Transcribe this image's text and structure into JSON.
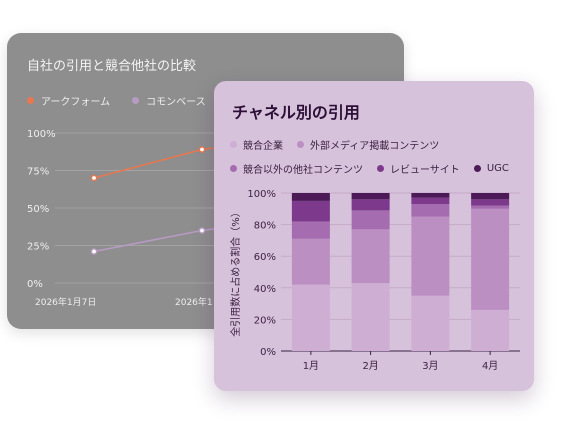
{
  "back_chart": {
    "title": "自社の引用と競合他社の比較",
    "legend": [
      {
        "name": "アークフォーム",
        "color": "#e8774f"
      },
      {
        "name": "コモンベース",
        "color": "#b89bc4"
      }
    ],
    "chart_data": {
      "type": "line",
      "x": [
        "2026年1月7日",
        "2026年1"
      ],
      "series": [
        {
          "name": "アークフォーム",
          "values": [
            70,
            89
          ],
          "color": "#e8774f"
        },
        {
          "name": "コモンベース",
          "values": [
            21,
            35
          ],
          "color": "#b89bc4"
        }
      ],
      "ylim": [
        0,
        100
      ],
      "yticks": [
        "0%",
        "25%",
        "50%",
        "75%",
        "100%"
      ]
    }
  },
  "front_chart": {
    "title": "チャネル別の引用",
    "legend": [
      {
        "name": "競合企業",
        "color": "#cfaed3"
      },
      {
        "name": "外部メディア掲載コンテンツ",
        "color": "#bb8fc2"
      },
      {
        "name": "競合以外の他社コンテンツ",
        "color": "#a56cb0"
      },
      {
        "name": "レビューサイト",
        "color": "#7d3a8c"
      },
      {
        "name": "UGC",
        "color": "#4c1a57"
      }
    ],
    "chart_data": {
      "type": "bar",
      "stacked": true,
      "categories": [
        "1月",
        "2月",
        "3月",
        "4月"
      ],
      "series": [
        {
          "name": "競合企業",
          "values": [
            42,
            43,
            35,
            26
          ],
          "color": "#cfaed3"
        },
        {
          "name": "外部メディア掲載コンテンツ",
          "values": [
            29,
            34,
            50,
            64
          ],
          "color": "#bb8fc2"
        },
        {
          "name": "競合以外の他社コンテンツ",
          "values": [
            11,
            12,
            8,
            2
          ],
          "color": "#a56cb0"
        },
        {
          "name": "レビューサイト",
          "values": [
            13,
            7,
            4,
            4
          ],
          "color": "#7d3a8c"
        },
        {
          "name": "UGC",
          "values": [
            5,
            4,
            3,
            4
          ],
          "color": "#4c1a57"
        }
      ],
      "ylim": [
        0,
        100
      ],
      "yticks": [
        "0%",
        "20%",
        "40%",
        "60%",
        "80%",
        "100%"
      ],
      "ylabel": "全引用数に占める割合（%）"
    }
  }
}
